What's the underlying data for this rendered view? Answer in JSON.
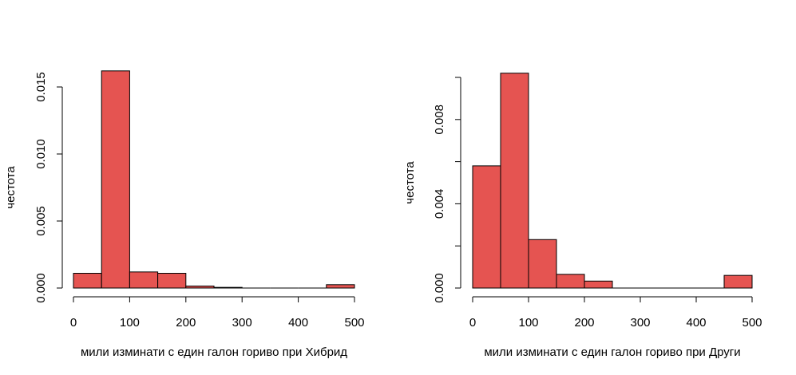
{
  "colors": {
    "bar_fill": "#E55451",
    "stroke": "#000000",
    "background": "#FFFFFF"
  },
  "chart_data": [
    {
      "type": "histogram",
      "title": "",
      "xlabel": "мили изминати с един галон гориво при Хибрид",
      "ylabel": "честота",
      "bins": [
        [
          0,
          50
        ],
        [
          50,
          100
        ],
        [
          100,
          150
        ],
        [
          150,
          200
        ],
        [
          200,
          250
        ],
        [
          250,
          300
        ],
        [
          300,
          350
        ],
        [
          350,
          400
        ],
        [
          400,
          450
        ],
        [
          450,
          500
        ]
      ],
      "values": [
        0.0011,
        0.0162,
        0.0012,
        0.0011,
        0.00015,
        5e-05,
        0,
        0,
        0,
        0.00025
      ],
      "xlim": [
        0,
        500
      ],
      "ylim": [
        0,
        0.015
      ],
      "x_ticks": [
        {
          "value": 0,
          "label": "0"
        },
        {
          "value": 100,
          "label": "100"
        },
        {
          "value": 200,
          "label": "200"
        },
        {
          "value": 300,
          "label": "300"
        },
        {
          "value": 400,
          "label": "400"
        },
        {
          "value": 500,
          "label": "500"
        }
      ],
      "y_ticks": [
        {
          "value": 0,
          "label": "0.000"
        },
        {
          "value": 0.005,
          "label": "0.005"
        },
        {
          "value": 0.01,
          "label": "0.010"
        },
        {
          "value": 0.015,
          "label": "0.015"
        }
      ],
      "grid": false
    },
    {
      "type": "histogram",
      "title": "",
      "xlabel": "мили изминати с един галон гориво при Други",
      "ylabel": "честота",
      "bins": [
        [
          0,
          50
        ],
        [
          50,
          100
        ],
        [
          100,
          150
        ],
        [
          150,
          200
        ],
        [
          200,
          250
        ],
        [
          250,
          300
        ],
        [
          300,
          350
        ],
        [
          350,
          400
        ],
        [
          400,
          450
        ],
        [
          450,
          500
        ]
      ],
      "values": [
        0.0058,
        0.0102,
        0.0023,
        0.00065,
        0.00033,
        0,
        0,
        0,
        0,
        0.0006
      ],
      "xlim": [
        0,
        500
      ],
      "ylim": [
        0,
        0.01
      ],
      "x_ticks": [
        {
          "value": 0,
          "label": "0"
        },
        {
          "value": 100,
          "label": "100"
        },
        {
          "value": 200,
          "label": "200"
        },
        {
          "value": 300,
          "label": "300"
        },
        {
          "value": 400,
          "label": "400"
        },
        {
          "value": 500,
          "label": "500"
        }
      ],
      "y_ticks": [
        {
          "value": 0,
          "label": "0.000"
        },
        {
          "value": 0.002,
          "label": ""
        },
        {
          "value": 0.004,
          "label": "0.004"
        },
        {
          "value": 0.006,
          "label": ""
        },
        {
          "value": 0.008,
          "label": "0.008"
        },
        {
          "value": 0.01,
          "label": ""
        }
      ],
      "grid": false
    }
  ]
}
